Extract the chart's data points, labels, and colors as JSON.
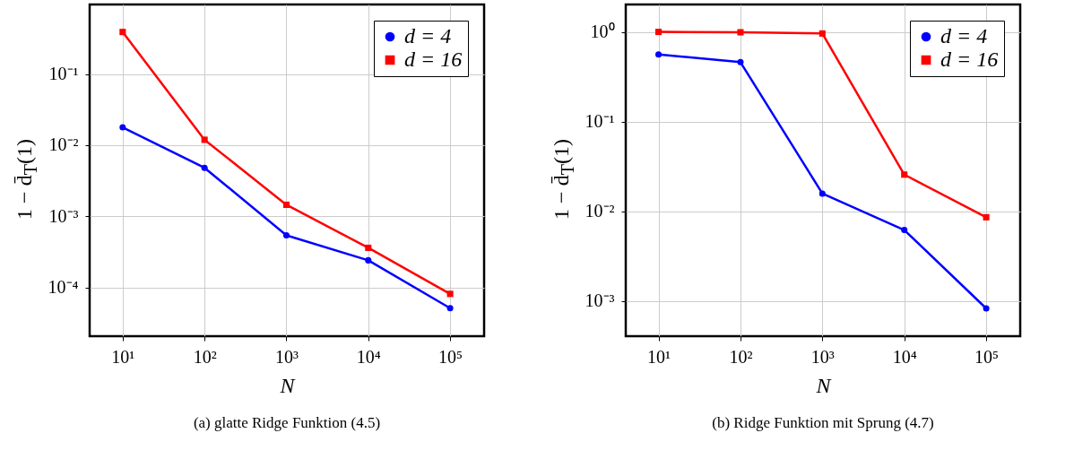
{
  "chart_data": [
    {
      "type": "line",
      "x": [
        10,
        100,
        1000,
        10000,
        100000
      ],
      "xlabel": "N",
      "ylabel": "1 − d̄$_{T}$(1)",
      "log": "xy",
      "grid": true,
      "legend": "top right",
      "xlim": [
        3.95,
        260000
      ],
      "ylim": [
        2.06e-05,
        0.95
      ],
      "xticks": [
        {
          "value": 10,
          "label": "10¹"
        },
        {
          "value": 100,
          "label": "10²"
        },
        {
          "value": 1000,
          "label": "10³"
        },
        {
          "value": 10000,
          "label": "10⁴"
        },
        {
          "value": 100000,
          "label": "10⁵"
        }
      ],
      "yticks": [
        {
          "value": 0.0001,
          "label": "10⁻⁴"
        },
        {
          "value": 0.001,
          "label": "10⁻³"
        },
        {
          "value": 0.01,
          "label": "10⁻²"
        },
        {
          "value": 0.1,
          "label": "10⁻¹"
        }
      ],
      "series": [
        {
          "name": "d = 4",
          "color": "#0000ff",
          "marker": "circle",
          "values": [
            0.0178,
            0.0048,
            0.00054,
            0.00024,
            5.1e-05
          ]
        },
        {
          "name": "d = 16",
          "color": "#ff0000",
          "marker": "square",
          "values": [
            0.39,
            0.0119,
            0.00145,
            0.00036,
            8.1e-05
          ]
        }
      ],
      "annotations": [
        "(a) glatte Ridge Funktion (4.5)"
      ]
    },
    {
      "type": "line",
      "x": [
        10,
        100,
        1000,
        10000,
        100000
      ],
      "xlabel": "N",
      "ylabel": "1 − d̄$_{T}$(1)",
      "log": "xy",
      "grid": true,
      "legend": "top right",
      "xlim": [
        3.98,
        260000
      ],
      "ylim": [
        0.000407,
        2.02
      ],
      "xticks": [
        {
          "value": 10,
          "label": "10¹"
        },
        {
          "value": 100,
          "label": "10²"
        },
        {
          "value": 1000,
          "label": "10³"
        },
        {
          "value": 10000,
          "label": "10⁴"
        },
        {
          "value": 100000,
          "label": "10⁵"
        }
      ],
      "yticks": [
        {
          "value": 0.001,
          "label": "10⁻³"
        },
        {
          "value": 0.01,
          "label": "10⁻²"
        },
        {
          "value": 0.1,
          "label": "10⁻¹"
        },
        {
          "value": 1,
          "label": "10⁰"
        }
      ],
      "series": [
        {
          "name": "d = 4",
          "color": "#0000ff",
          "marker": "circle",
          "values": [
            0.56,
            0.46,
            0.0158,
            0.0062,
            0.00083
          ]
        },
        {
          "name": "d = 16",
          "color": "#ff0000",
          "marker": "square",
          "values": [
            1.0,
            0.99,
            0.96,
            0.0257,
            0.0086
          ]
        }
      ],
      "annotations": [
        "(b) Ridge Funktion mit Sprung (4.7)"
      ]
    }
  ]
}
